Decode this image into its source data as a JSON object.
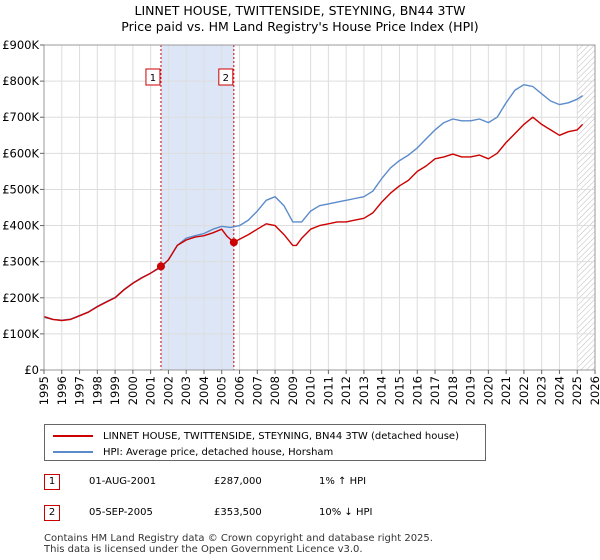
{
  "chart_data": {
    "type": "line",
    "title": "LINNET HOUSE, TWITTENSIDE, STEYNING, BN44 3TW",
    "subtitle": "Price paid vs. HM Land Registry's House Price Index (HPI)",
    "ylabel": "",
    "xlabel": "",
    "ylim": [
      0,
      900000
    ],
    "xlim": [
      1995,
      2026
    ],
    "y_ticks": [
      0,
      100000,
      200000,
      300000,
      400000,
      500000,
      600000,
      700000,
      800000,
      900000
    ],
    "y_tick_labels": [
      "£0",
      "£100K",
      "£200K",
      "£300K",
      "£400K",
      "£500K",
      "£600K",
      "£700K",
      "£800K",
      "£900K"
    ],
    "x_ticks": [
      1995,
      1996,
      1997,
      1998,
      1999,
      2000,
      2001,
      2002,
      2003,
      2004,
      2005,
      2006,
      2007,
      2008,
      2009,
      2010,
      2011,
      2012,
      2013,
      2014,
      2015,
      2016,
      2017,
      2018,
      2019,
      2020,
      2021,
      2022,
      2023,
      2024,
      2025,
      2026
    ],
    "grid": true,
    "shaded_region": {
      "from": 2001.58,
      "to": 2005.68
    },
    "future_hatch_from": 2025.0,
    "series": [
      {
        "name": "LINNET HOUSE, TWITTENSIDE, STEYNING, BN44 3TW (detached house)",
        "color": "#cc0000",
        "x": [
          1995.0,
          1995.5,
          1996.0,
          1996.5,
          1997.0,
          1997.5,
          1998.0,
          1998.5,
          1999.0,
          1999.5,
          2000.0,
          2000.5,
          2001.0,
          2001.58,
          2002.0,
          2002.5,
          2003.0,
          2003.5,
          2004.0,
          2004.5,
          2005.0,
          2005.3,
          2005.68,
          2006.0,
          2006.5,
          2007.0,
          2007.5,
          2008.0,
          2008.5,
          2009.0,
          2009.2,
          2009.5,
          2010.0,
          2010.5,
          2011.0,
          2011.5,
          2012.0,
          2012.5,
          2013.0,
          2013.5,
          2014.0,
          2014.5,
          2015.0,
          2015.5,
          2016.0,
          2016.5,
          2017.0,
          2017.5,
          2018.0,
          2018.5,
          2019.0,
          2019.5,
          2020.0,
          2020.5,
          2021.0,
          2021.5,
          2022.0,
          2022.5,
          2023.0,
          2023.5,
          2024.0,
          2024.5,
          2025.0,
          2025.3
        ],
        "values": [
          148000,
          140000,
          137000,
          140000,
          150000,
          160000,
          175000,
          188000,
          200000,
          222000,
          240000,
          255000,
          268000,
          287000,
          305000,
          345000,
          360000,
          368000,
          372000,
          380000,
          390000,
          370000,
          353500,
          362000,
          375000,
          390000,
          405000,
          400000,
          375000,
          345000,
          345000,
          365000,
          390000,
          400000,
          405000,
          410000,
          410000,
          415000,
          420000,
          435000,
          465000,
          490000,
          510000,
          525000,
          550000,
          565000,
          585000,
          590000,
          598000,
          590000,
          590000,
          595000,
          585000,
          600000,
          630000,
          655000,
          680000,
          700000,
          680000,
          665000,
          650000,
          660000,
          665000,
          680000
        ]
      },
      {
        "name": "HPI: Average price, detached house, Horsham",
        "color": "#5b8bcb",
        "x": [
          1995.0,
          1995.5,
          1996.0,
          1996.5,
          1997.0,
          1997.5,
          1998.0,
          1998.5,
          1999.0,
          1999.5,
          2000.0,
          2000.5,
          2001.0,
          2001.58,
          2002.0,
          2002.5,
          2003.0,
          2003.5,
          2004.0,
          2004.5,
          2005.0,
          2005.5,
          2006.0,
          2006.5,
          2007.0,
          2007.5,
          2008.0,
          2008.5,
          2009.0,
          2009.5,
          2010.0,
          2010.5,
          2011.0,
          2011.5,
          2012.0,
          2012.5,
          2013.0,
          2013.5,
          2014.0,
          2014.5,
          2015.0,
          2015.5,
          2016.0,
          2016.5,
          2017.0,
          2017.5,
          2018.0,
          2018.5,
          2019.0,
          2019.5,
          2020.0,
          2020.5,
          2021.0,
          2021.5,
          2022.0,
          2022.5,
          2023.0,
          2023.5,
          2024.0,
          2024.5,
          2025.0,
          2025.3
        ],
        "values": [
          146000,
          140000,
          138000,
          141000,
          151000,
          161000,
          176000,
          189000,
          201000,
          223000,
          241000,
          256000,
          268000,
          284000,
          305000,
          345000,
          365000,
          372000,
          378000,
          390000,
          398000,
          395000,
          400000,
          415000,
          440000,
          470000,
          480000,
          455000,
          410000,
          410000,
          440000,
          455000,
          460000,
          465000,
          470000,
          475000,
          480000,
          495000,
          530000,
          560000,
          580000,
          595000,
          615000,
          640000,
          665000,
          685000,
          695000,
          690000,
          690000,
          695000,
          685000,
          700000,
          740000,
          775000,
          790000,
          785000,
          765000,
          745000,
          735000,
          740000,
          750000,
          760000
        ]
      }
    ],
    "sales": [
      {
        "label": "1",
        "year": 2001.58,
        "price": 287000
      },
      {
        "label": "2",
        "year": 2005.68,
        "price": 353500
      }
    ]
  },
  "legend": {
    "property": "LINNET HOUSE, TWITTENSIDE, STEYNING, BN44 3TW (detached house)",
    "hpi": "HPI: Average price, detached house, Horsham"
  },
  "transactions": [
    {
      "num": "1",
      "date": "01-AUG-2001",
      "price": "£287,000",
      "hpi": "1% ↑ HPI"
    },
    {
      "num": "2",
      "date": "05-SEP-2005",
      "price": "£353,500",
      "hpi": "10% ↓ HPI"
    }
  ],
  "footer": {
    "line1": "Contains HM Land Registry data © Crown copyright and database right 2025.",
    "line2": "This data is licensed under the Open Government Licence v3.0."
  },
  "colors": {
    "property_line": "#cc0000",
    "hpi_line": "#5b8bcb",
    "shade": "#dde6f7",
    "grid": "#dddddd"
  }
}
